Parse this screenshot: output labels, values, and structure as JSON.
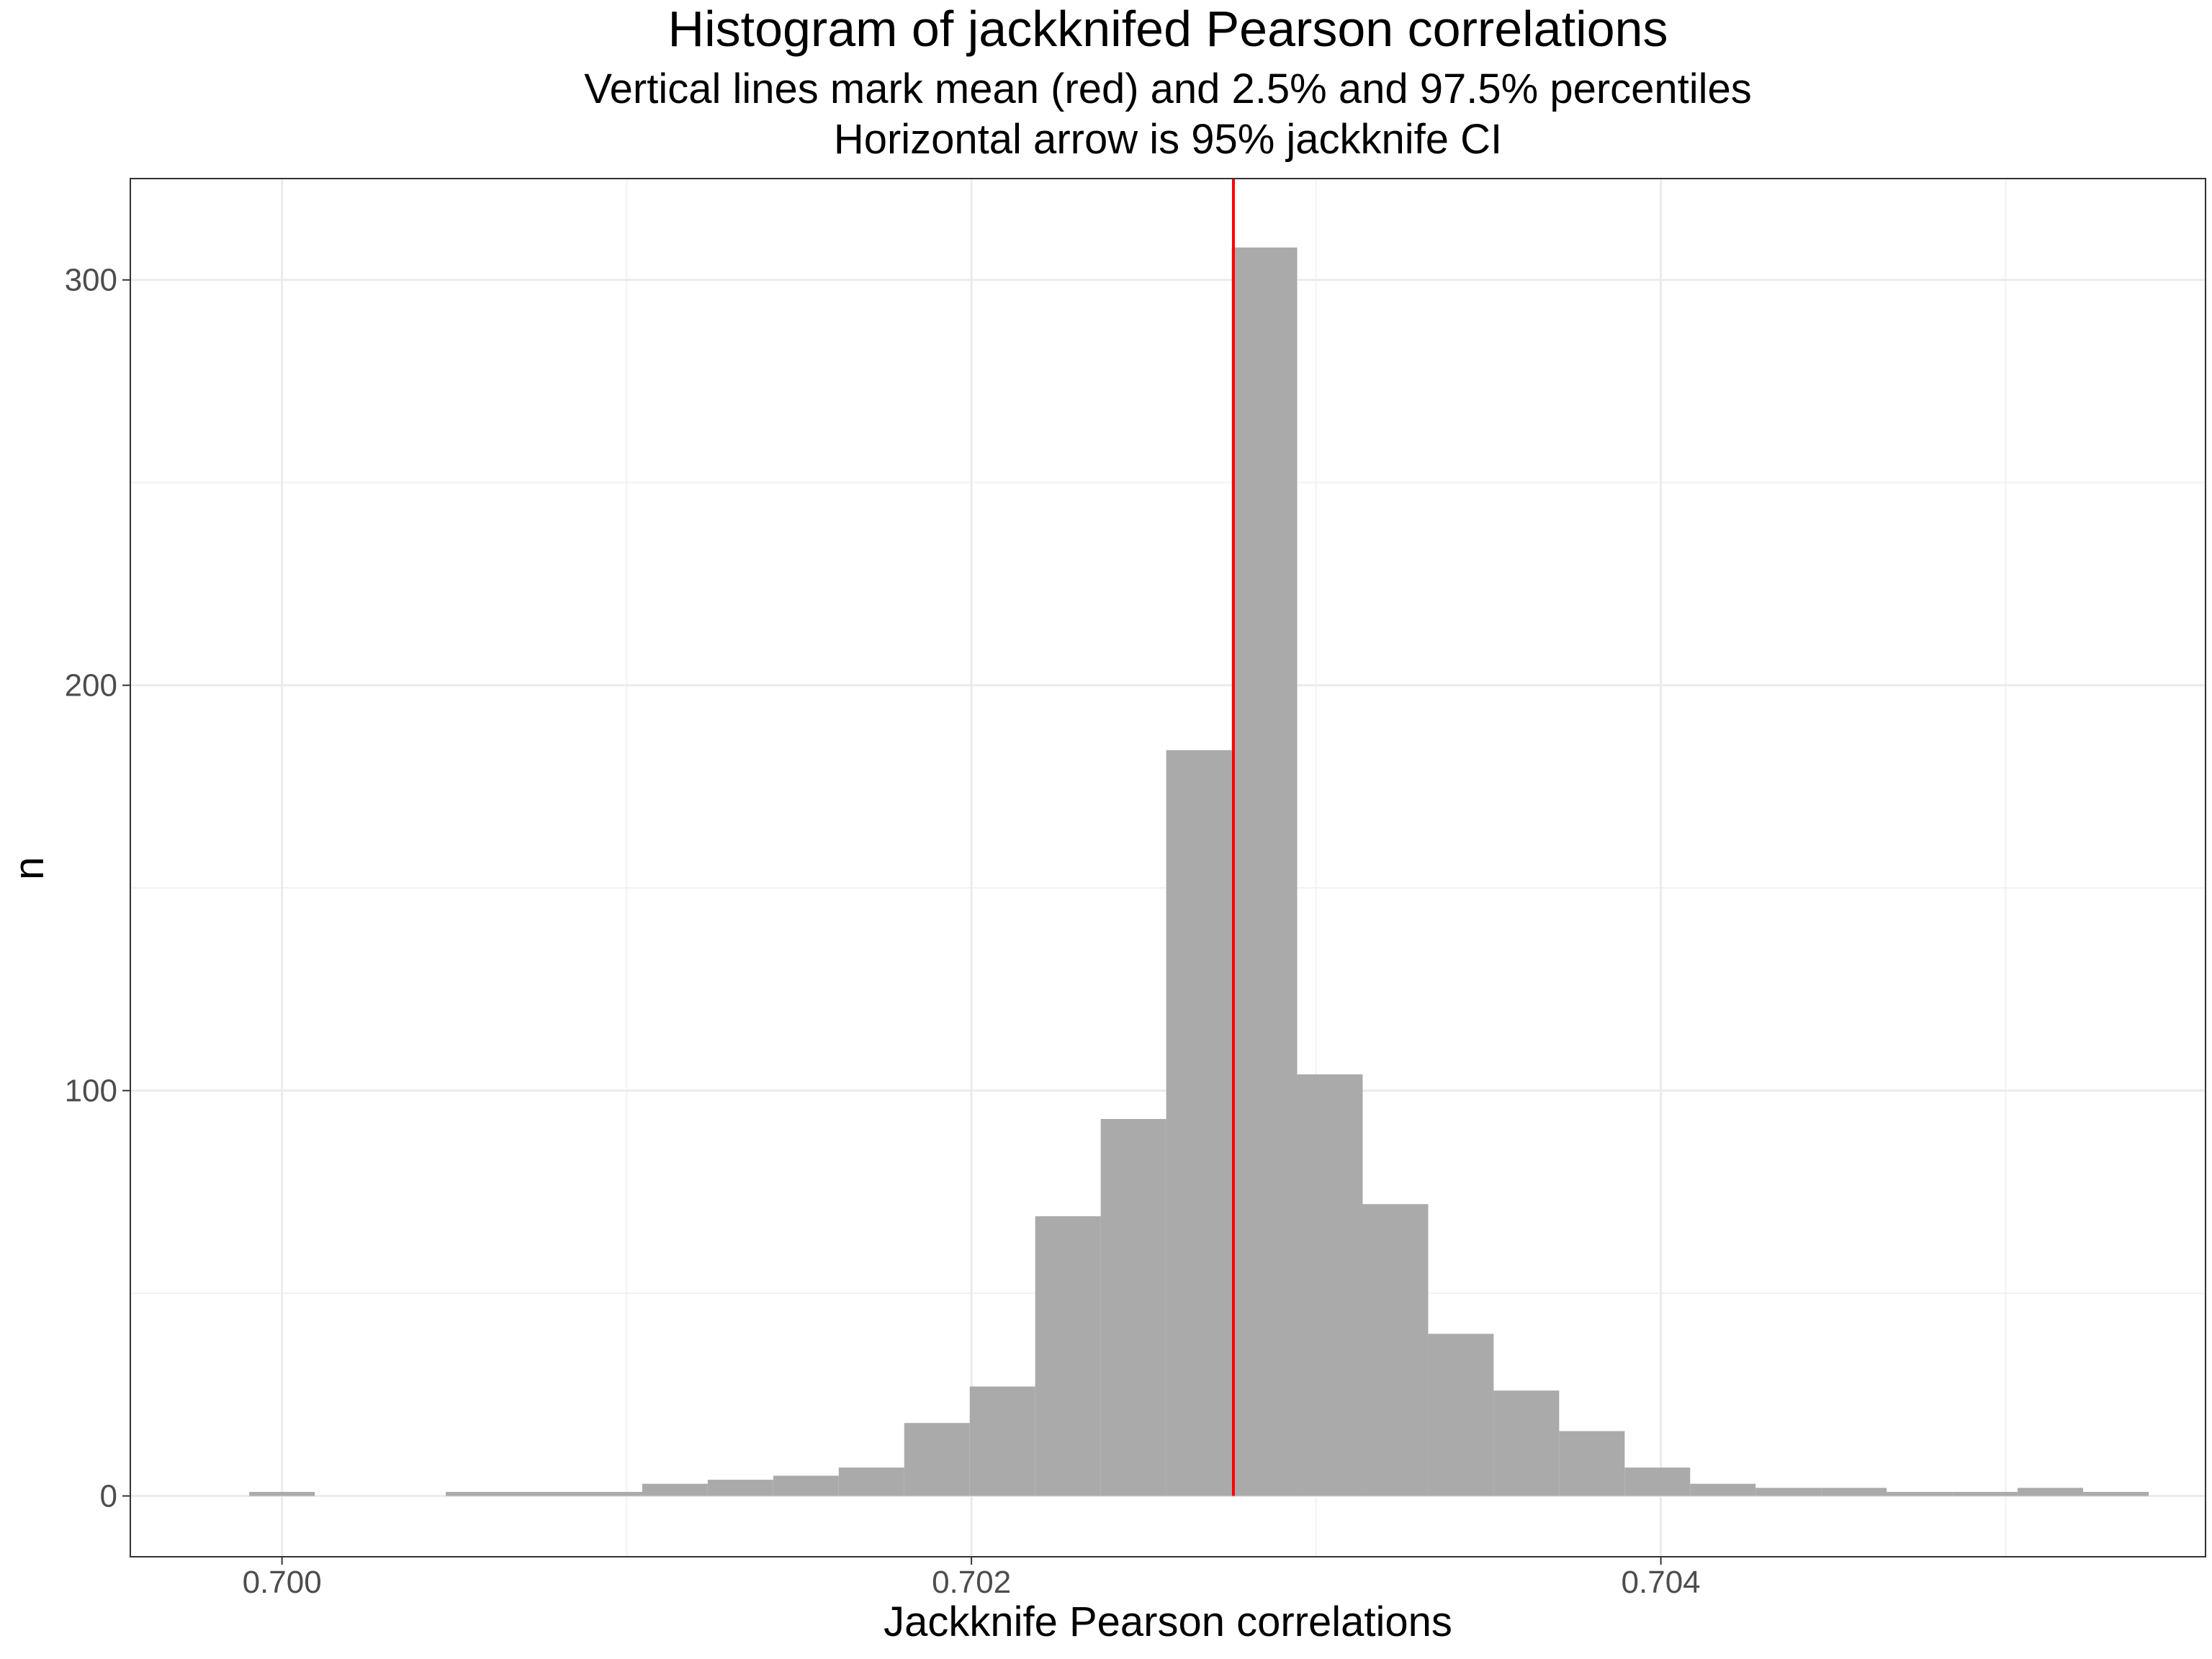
{
  "chart_data": {
    "type": "bar",
    "title": "Histogram of jackknifed Pearson correlations",
    "subtitle_lines": [
      "Vertical lines mark mean (red) and 2.5% and 97.5% percentiles",
      "Horizontal arrow is 95% jackknife CI"
    ],
    "xlabel": "Jackknife Pearson correlations",
    "ylabel": "n",
    "xlim": [
      0.69956,
      0.70558
    ],
    "ylim": [
      -15,
      325
    ],
    "x_ticks": [
      0.7,
      0.702,
      0.704
    ],
    "x_tick_labels": [
      "0.700",
      "0.702",
      "0.704"
    ],
    "x_minor_ticks": [
      0.701,
      0.703,
      0.705
    ],
    "y_ticks": [
      0,
      100,
      200,
      300
    ],
    "y_tick_labels": [
      "0",
      "100",
      "200",
      "300"
    ],
    "y_minor_ticks": [
      50,
      150,
      250
    ],
    "grid": true,
    "bin_width": 0.00019,
    "bin_centers": [
      0.7,
      0.70019,
      0.70038,
      0.70057,
      0.70076,
      0.70095,
      0.70114,
      0.70133,
      0.70152,
      0.70171,
      0.7019,
      0.70209,
      0.70228,
      0.70247,
      0.70266,
      0.70285,
      0.70304,
      0.70323,
      0.70342,
      0.70361,
      0.7038,
      0.70399,
      0.70418,
      0.70437,
      0.70456,
      0.70475,
      0.70494,
      0.70513,
      0.70532
    ],
    "counts": [
      1,
      0,
      0,
      1,
      1,
      1,
      3,
      4,
      5,
      7,
      18,
      27,
      69,
      93,
      184,
      308,
      104,
      72,
      40,
      26,
      16,
      7,
      3,
      2,
      2,
      1,
      1,
      2,
      1
    ],
    "bar_color": "#aaaaaa",
    "mean": 0.70276,
    "mean_line_color": "#ff0000"
  }
}
